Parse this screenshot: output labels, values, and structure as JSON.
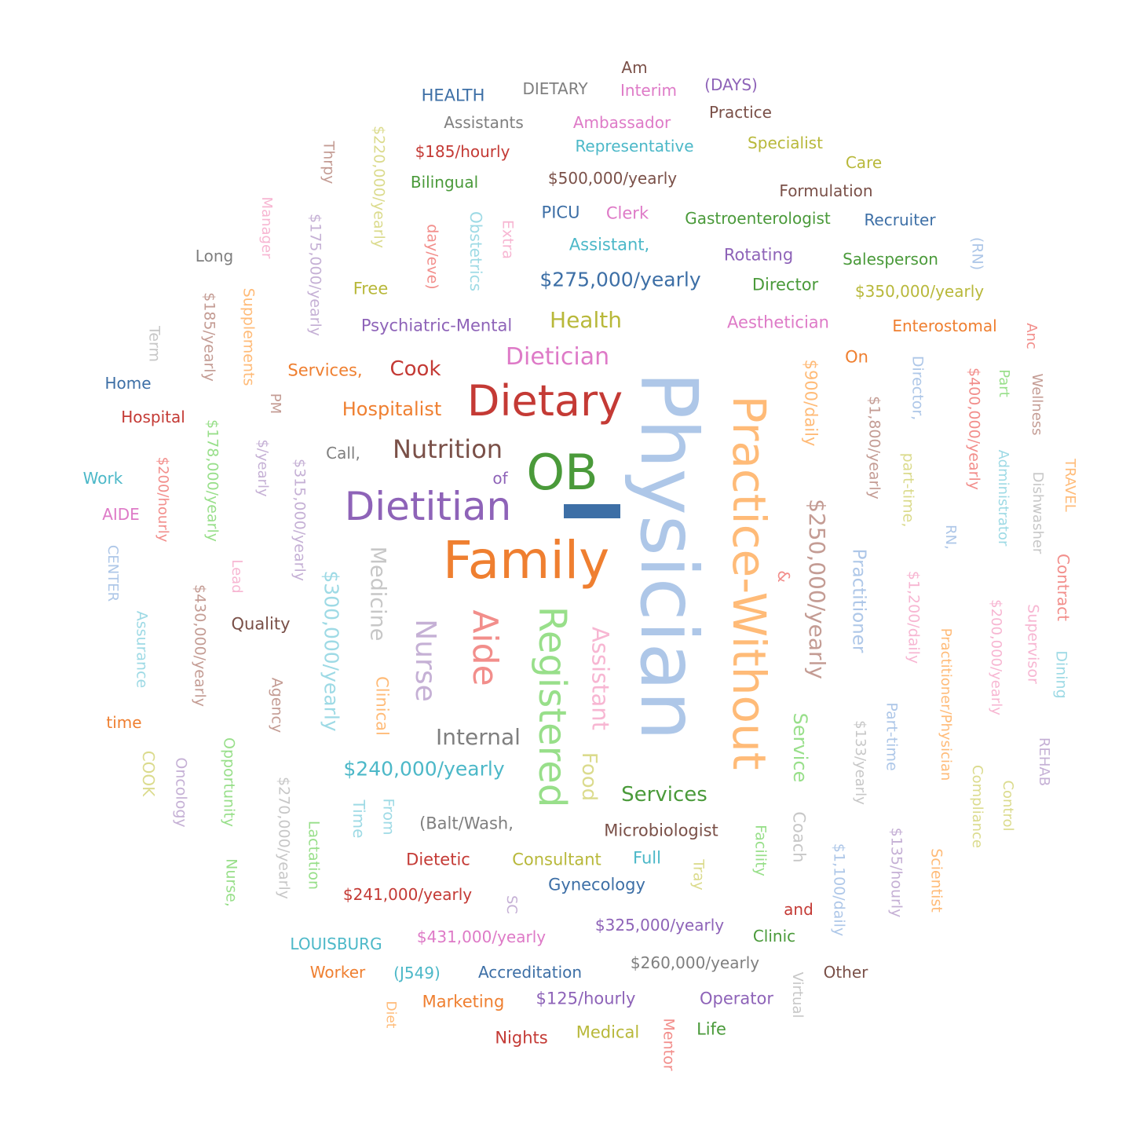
{
  "words": [
    {
      "text": "Am",
      "color": "#7a5048"
    },
    {
      "text": "HEALTH",
      "color": "#3d6fa6"
    },
    {
      "text": "DIETARY",
      "color": "#7f7f7f"
    },
    {
      "text": "Interim",
      "color": "#de7ac7"
    },
    {
      "text": "(DAYS)",
      "color": "#8e63b8"
    },
    {
      "text": "Practice",
      "color": "#7a5048"
    },
    {
      "text": "Assistants",
      "color": "#7f7f7f"
    },
    {
      "text": "Ambassador",
      "color": "#de7ac7"
    },
    {
      "text": "$185/hourly",
      "color": "#c43a35"
    },
    {
      "text": "Representative",
      "color": "#4cb8c8"
    },
    {
      "text": "Specialist",
      "color": "#b8b83a"
    },
    {
      "text": "Care",
      "color": "#b8b83a"
    },
    {
      "text": "Bilingual",
      "color": "#4a9a3a"
    },
    {
      "text": "$500,000/yearly",
      "color": "#7a5048"
    },
    {
      "text": "Formulation",
      "color": "#7a5048"
    },
    {
      "text": "PICU",
      "color": "#3d6fa6"
    },
    {
      "text": "Clerk",
      "color": "#de7ac7"
    },
    {
      "text": "Gastroenterologist",
      "color": "#4a9a3a"
    },
    {
      "text": "Recruiter",
      "color": "#3d6fa6"
    },
    {
      "text": "Long",
      "color": "#7f7f7f"
    },
    {
      "text": "Assistant,",
      "color": "#4cb8c8"
    },
    {
      "text": "Rotating",
      "color": "#8e63b8"
    },
    {
      "text": "Salesperson",
      "color": "#4a9a3a"
    },
    {
      "text": "$275,000/yearly",
      "color": "#3d6fa6"
    },
    {
      "text": "Director",
      "color": "#4a9a3a"
    },
    {
      "text": "$350,000/yearly",
      "color": "#b8b83a"
    },
    {
      "text": "Free",
      "color": "#b8b83a"
    },
    {
      "text": "Health",
      "color": "#b8b83a"
    },
    {
      "text": "Psychiatric-Mental",
      "color": "#8e63b8"
    },
    {
      "text": "Aesthetician",
      "color": "#de7ac7"
    },
    {
      "text": "Enterostomal",
      "color": "#ef7f30"
    },
    {
      "text": "Dietician",
      "color": "#de7ac7"
    },
    {
      "text": "Services,",
      "color": "#ef7f30"
    },
    {
      "text": "Cook",
      "color": "#c43a35"
    },
    {
      "text": "On",
      "color": "#ef7f30"
    },
    {
      "text": "Home",
      "color": "#3d6fa6"
    },
    {
      "text": "Dietary",
      "color": "#c43a35"
    },
    {
      "text": "Hospitalist",
      "color": "#ef7f30"
    },
    {
      "text": "Hospital",
      "color": "#c43a35"
    },
    {
      "text": "Call,",
      "color": "#7f7f7f"
    },
    {
      "text": "Nutrition",
      "color": "#7a5048"
    },
    {
      "text": "OB",
      "color": "#4a9a3a"
    },
    {
      "text": "Work",
      "color": "#4cb8c8"
    },
    {
      "text": "of",
      "color": "#8e63b8"
    },
    {
      "text": "Dietitian",
      "color": "#8e63b8"
    },
    {
      "text": "AIDE",
      "color": "#de7ac7"
    },
    {
      "text": "Family",
      "color": "#ef7f30"
    },
    {
      "text": "Quality",
      "color": "#7a5048"
    },
    {
      "text": "Internal",
      "color": "#7f7f7f"
    },
    {
      "text": "time",
      "color": "#ef7f30"
    },
    {
      "text": "$240,000/yearly",
      "color": "#4cb8c8"
    },
    {
      "text": "Services",
      "color": "#4a9a3a"
    },
    {
      "text": "(Balt/Wash,",
      "color": "#7f7f7f"
    },
    {
      "text": "Microbiologist",
      "color": "#7a5048"
    },
    {
      "text": "Dietetic",
      "color": "#c43a35"
    },
    {
      "text": "Consultant",
      "color": "#b8b83a"
    },
    {
      "text": "Full",
      "color": "#4cb8c8"
    },
    {
      "text": "Gynecology",
      "color": "#3d6fa6"
    },
    {
      "text": "$241,000/yearly",
      "color": "#c43a35"
    },
    {
      "text": "and",
      "color": "#c43a35"
    },
    {
      "text": "$325,000/yearly",
      "color": "#8e63b8"
    },
    {
      "text": "Clinic",
      "color": "#4a9a3a"
    },
    {
      "text": "LOUISBURG",
      "color": "#4cb8c8"
    },
    {
      "text": "$431,000/yearly",
      "color": "#de7ac7"
    },
    {
      "text": "$260,000/yearly",
      "color": "#7f7f7f"
    },
    {
      "text": "Worker",
      "color": "#ef7f30"
    },
    {
      "text": "(J549)",
      "color": "#4cb8c8"
    },
    {
      "text": "Accreditation",
      "color": "#3d6fa6"
    },
    {
      "text": "Other",
      "color": "#7a5048"
    },
    {
      "text": "Marketing",
      "color": "#ef7f30"
    },
    {
      "text": "$125/hourly",
      "color": "#8e63b8"
    },
    {
      "text": "Operator",
      "color": "#8e63b8"
    },
    {
      "text": "Nights",
      "color": "#c43a35"
    },
    {
      "text": "Medical",
      "color": "#b8b83a"
    },
    {
      "text": "Life",
      "color": "#4a9a3a"
    },
    {
      "text": "$220,000/yearly",
      "color": "#dbdb8d"
    },
    {
      "text": "Thrpy",
      "color": "#c49c94"
    },
    {
      "text": "Manager",
      "color": "#f7b6d2"
    },
    {
      "text": "$175,000/yearly",
      "color": "#c5b0d5"
    },
    {
      "text": "day/eve)",
      "color": "#f28e8b"
    },
    {
      "text": "Obstetrics",
      "color": "#9edae5"
    },
    {
      "text": "Extra",
      "color": "#f7b6d2"
    },
    {
      "text": "(RN)",
      "color": "#aec7e8"
    },
    {
      "text": "Supplements",
      "color": "#ffbb78"
    },
    {
      "text": "$185/yearly",
      "color": "#c49c94"
    },
    {
      "text": "Term",
      "color": "#c7c7c7"
    },
    {
      "text": "Physician",
      "color": "#aec7e8"
    },
    {
      "text": "Practice-Without",
      "color": "#ffbb78"
    },
    {
      "text": "$900/daily",
      "color": "#ffbb78"
    },
    {
      "text": "Director,",
      "color": "#aec7e8"
    },
    {
      "text": "$1,800/yearly",
      "color": "#c49c94"
    },
    {
      "text": "$400,000/yearly",
      "color": "#f28e8b"
    },
    {
      "text": "Anc",
      "color": "#f28e8b"
    },
    {
      "text": "Part",
      "color": "#98df8a"
    },
    {
      "text": "Wellness",
      "color": "#c49c94"
    },
    {
      "text": "PM",
      "color": "#c49c94"
    },
    {
      "text": "$178,000/yearly",
      "color": "#98df8a"
    },
    {
      "text": "$/yearly",
      "color": "#c5b0d5"
    },
    {
      "text": "$315,000/yearly",
      "color": "#c5b0d5"
    },
    {
      "text": "$200/hourly",
      "color": "#f28e8b"
    },
    {
      "text": "part-time,",
      "color": "#dbdb8d"
    },
    {
      "text": "Administrator",
      "color": "#9edae5"
    },
    {
      "text": "Dishwasher",
      "color": "#c7c7c7"
    },
    {
      "text": "TRAVEL",
      "color": "#ffbb78"
    },
    {
      "text": "$250,000/yearly",
      "color": "#c49c94"
    },
    {
      "text": "RN,",
      "color": "#aec7e8"
    },
    {
      "text": "&",
      "color": "#f28e8b"
    },
    {
      "text": "Practitioner",
      "color": "#aec7e8"
    },
    {
      "text": "CENTER",
      "color": "#aec7e8"
    },
    {
      "text": "Lead",
      "color": "#f7b6d2"
    },
    {
      "text": "Medicine",
      "color": "#c7c7c7"
    },
    {
      "text": "$430,000/yearly",
      "color": "#c49c94"
    },
    {
      "text": "$300,000/yearly",
      "color": "#9edae5"
    },
    {
      "text": "Nurse",
      "color": "#c5b0d5"
    },
    {
      "text": "Aide",
      "color": "#f28e8b"
    },
    {
      "text": "Registered",
      "color": "#98df8a"
    },
    {
      "text": "Assistant",
      "color": "#f7b6d2"
    },
    {
      "text": "$1,200/daily",
      "color": "#f7b6d2"
    },
    {
      "text": "Contract",
      "color": "#f28e8b"
    },
    {
      "text": "$200,000/yearly",
      "color": "#f7b6d2"
    },
    {
      "text": "Supervisor",
      "color": "#f7b6d2"
    },
    {
      "text": "Practitioner/Physician",
      "color": "#ffbb78"
    },
    {
      "text": "Dining",
      "color": "#9edae5"
    },
    {
      "text": "Assurance",
      "color": "#9edae5"
    },
    {
      "text": "Agency",
      "color": "#c49c94"
    },
    {
      "text": "Clinical",
      "color": "#ffbb78"
    },
    {
      "text": "Service",
      "color": "#98df8a"
    },
    {
      "text": "$133/yearly",
      "color": "#c7c7c7"
    },
    {
      "text": "Part-time",
      "color": "#aec7e8"
    },
    {
      "text": "REHAB",
      "color": "#c5b0d5"
    },
    {
      "text": "COOK",
      "color": "#dbdb8d"
    },
    {
      "text": "Oncology",
      "color": "#c5b0d5"
    },
    {
      "text": "Opportunity",
      "color": "#98df8a"
    },
    {
      "text": "$270,000/yearly",
      "color": "#c7c7c7"
    },
    {
      "text": "Food",
      "color": "#dbdb8d"
    },
    {
      "text": "Compliance",
      "color": "#dbdb8d"
    },
    {
      "text": "Control",
      "color": "#dbdb8d"
    },
    {
      "text": "Time",
      "color": "#9edae5"
    },
    {
      "text": "From",
      "color": "#9edae5"
    },
    {
      "text": "Coach",
      "color": "#c7c7c7"
    },
    {
      "text": "Lactation",
      "color": "#98df8a"
    },
    {
      "text": "Facility",
      "color": "#98df8a"
    },
    {
      "text": "$135/hourly",
      "color": "#c5b0d5"
    },
    {
      "text": "Nurse,",
      "color": "#98df8a"
    },
    {
      "text": "Tray",
      "color": "#dbdb8d"
    },
    {
      "text": "$1,100/daily",
      "color": "#aec7e8"
    },
    {
      "text": "Scientist",
      "color": "#ffbb78"
    },
    {
      "text": "SC",
      "color": "#c5b0d5"
    },
    {
      "text": "Virtual",
      "color": "#c7c7c7"
    },
    {
      "text": "Diet",
      "color": "#ffbb78"
    },
    {
      "text": "Mentor",
      "color": "#f28e8b"
    }
  ]
}
